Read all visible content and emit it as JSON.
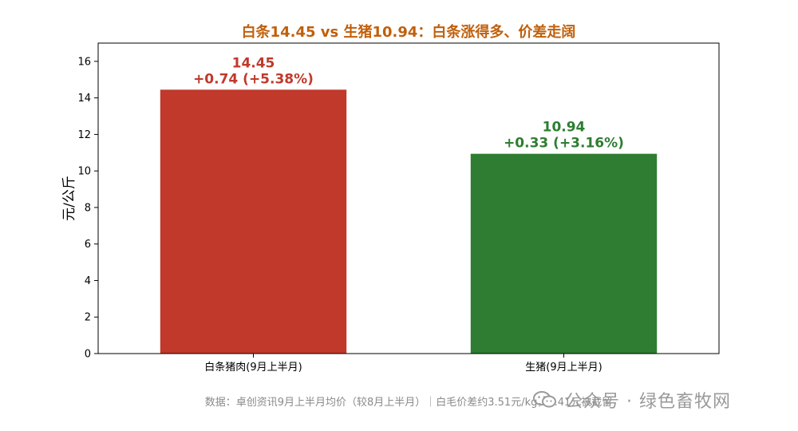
{
  "chart_data": {
    "type": "bar",
    "title": "白条14.45 vs 生猪10.94：白条涨得多、价差走阔",
    "xlabel": "",
    "ylabel": "元/公斤",
    "ylim": [
      0,
      17
    ],
    "yticks": [
      0,
      2,
      4,
      6,
      8,
      10,
      12,
      14,
      16
    ],
    "grid": false,
    "categories": [
      "白条猪肉(9月上半月)",
      "生猪(9月上半月)"
    ],
    "values": [
      14.45,
      10.94
    ],
    "value_labels": [
      "14.45",
      "10.94"
    ],
    "change_labels": [
      "+0.74 (+5.38%)",
      "+0.33 (+3.16%)"
    ],
    "colors": [
      "#c0392b",
      "#2e7d32"
    ],
    "title_color": "#c0600c"
  },
  "footnote": "数据：卓创资讯9月上半月均价（较8月上半月）｜白毛价差约3.51元/kg，0.41元被截留",
  "watermark": "公众号 · 绿色畜牧网"
}
